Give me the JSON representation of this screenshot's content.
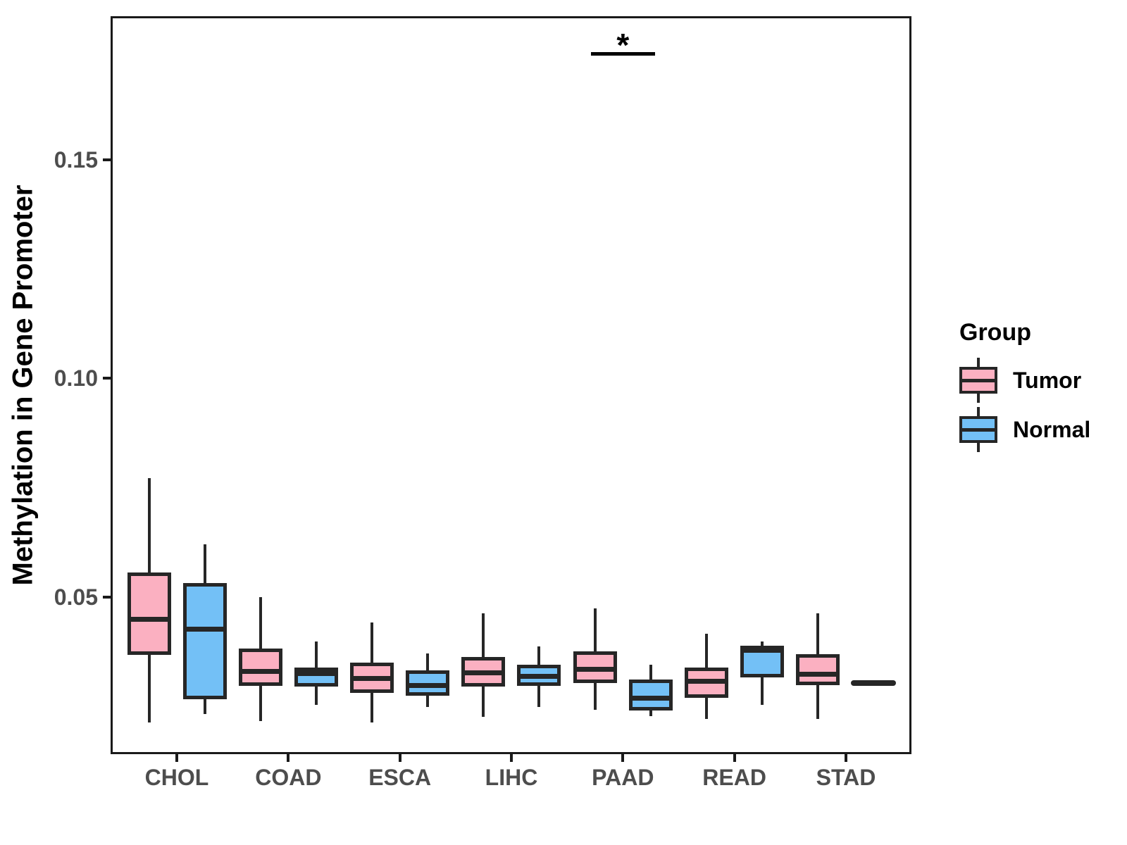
{
  "chart_data": {
    "type": "boxplot",
    "title": "",
    "xlabel": "",
    "ylabel": "Methylation in Gene Promoter",
    "categories": [
      "CHOL",
      "COAD",
      "ESCA",
      "LIHC",
      "PAAD",
      "READ",
      "STAD"
    ],
    "groups": [
      "Tumor",
      "Normal"
    ],
    "colors": {
      "Tumor": "#FBB0C1",
      "Normal": "#73C0F6"
    },
    "ylim": [
      0.014,
      0.1829
    ],
    "yticks": [
      0.05,
      0.1,
      0.15
    ],
    "ytick_labels": [
      "0.05",
      "0.10",
      "0.15"
    ],
    "grid": false,
    "legend_position": "right",
    "series": [
      {
        "name": "Tumor",
        "boxes": [
          {
            "category": "CHOL",
            "low": 0.0213,
            "q1": 0.0368,
            "median": 0.0448,
            "q3": 0.0555,
            "high": 0.0771
          },
          {
            "category": "COAD",
            "low": 0.0216,
            "q1": 0.0297,
            "median": 0.0329,
            "q3": 0.0382,
            "high": 0.05
          },
          {
            "category": "ESCA",
            "low": 0.0213,
            "q1": 0.0281,
            "median": 0.0313,
            "q3": 0.035,
            "high": 0.0442
          },
          {
            "category": "LIHC",
            "low": 0.0226,
            "q1": 0.0295,
            "median": 0.0326,
            "q3": 0.0363,
            "high": 0.0463
          },
          {
            "category": "PAAD",
            "low": 0.0242,
            "q1": 0.0303,
            "median": 0.0335,
            "q3": 0.0376,
            "high": 0.0473
          },
          {
            "category": "READ",
            "low": 0.0221,
            "q1": 0.0269,
            "median": 0.0306,
            "q3": 0.0339,
            "high": 0.0415
          },
          {
            "category": "STAD",
            "low": 0.0221,
            "q1": 0.0298,
            "median": 0.0323,
            "q3": 0.0369,
            "high": 0.0463
          }
        ]
      },
      {
        "name": "Normal",
        "boxes": [
          {
            "category": "CHOL",
            "low": 0.0232,
            "q1": 0.0266,
            "median": 0.0426,
            "q3": 0.0532,
            "high": 0.0621
          },
          {
            "category": "COAD",
            "low": 0.0253,
            "q1": 0.0294,
            "median": 0.0324,
            "q3": 0.0339,
            "high": 0.0398
          },
          {
            "category": "ESCA",
            "low": 0.0248,
            "q1": 0.0274,
            "median": 0.0297,
            "q3": 0.0331,
            "high": 0.0371
          },
          {
            "category": "LIHC",
            "low": 0.0248,
            "q1": 0.0297,
            "median": 0.0318,
            "q3": 0.0345,
            "high": 0.0387
          },
          {
            "category": "PAAD",
            "low": 0.0227,
            "q1": 0.024,
            "median": 0.0268,
            "q3": 0.0311,
            "high": 0.0345
          },
          {
            "category": "READ",
            "low": 0.0253,
            "q1": 0.0315,
            "median": 0.0377,
            "q3": 0.0388,
            "high": 0.0398
          },
          {
            "category": "STAD",
            "low": 0.0302,
            "q1": 0.0302,
            "median": 0.0302,
            "q3": 0.0302,
            "high": 0.0302
          }
        ]
      }
    ],
    "significance": {
      "category": "PAAD",
      "label": "*",
      "bar_value": 0.1747
    }
  },
  "legend": {
    "title": "Group",
    "items": [
      {
        "label": "Tumor",
        "color": "#FBB0C1"
      },
      {
        "label": "Normal",
        "color": "#73C0F6"
      }
    ]
  }
}
